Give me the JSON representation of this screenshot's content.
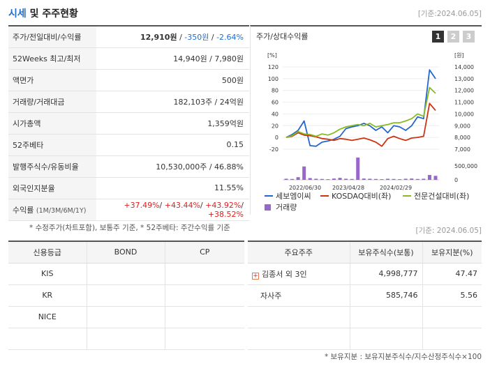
{
  "header": {
    "title_accent": "시세",
    "title_rest": " 및 주주현황",
    "basis": "[기준:2024.06.05]"
  },
  "stats": [
    {
      "key": "주가/전일대비/수익률",
      "bold": "12,910원",
      "sep": " / ",
      "change": "-350원",
      "rate": "-2.64%"
    },
    {
      "key": "52Weeks 최고/최저",
      "value": "14,940원 / 7,980원"
    },
    {
      "key": "액면가",
      "value": "500원"
    },
    {
      "key": "거래량/거래대금",
      "value": "182,103주 / 24억원"
    },
    {
      "key": "시가총액",
      "value": "1,359억원"
    },
    {
      "key": "52주베타",
      "value": "0.15"
    },
    {
      "key": "발행주식수/유동비율",
      "value": "10,530,000주 / 46.88%"
    },
    {
      "key": "외국인지분율",
      "value": "11.55%"
    },
    {
      "key": "수익률",
      "key_small": "(1M/3M/6M/1Y)",
      "r1": "+37.49%",
      "r2": "+43.44%",
      "r3": "+43.92%",
      "r4": "+38.52%"
    }
  ],
  "note1": "* 수정주가(차트포함), 보통주 기준, * 52주베타: 주간수익률 기준",
  "chart_panel": {
    "title": "주가/상대수익률",
    "tabs": [
      "1",
      "2",
      "3"
    ]
  },
  "chart_data": {
    "type": "line",
    "left_unit": "[%]",
    "right_unit": "[원]",
    "left_ticks": [
      "120",
      "100",
      "80",
      "60",
      "40",
      "20",
      "0",
      "-20"
    ],
    "right_ticks": [
      "14,000",
      "13,000",
      "12,000",
      "11,000",
      "10,000",
      "9,000",
      "8,000",
      "7,000"
    ],
    "volume_ticks": [
      "500,000",
      "0"
    ],
    "x_labels": [
      "2022/06/30",
      "2023/04/28",
      "2024/02/29"
    ],
    "ylim": [
      -20,
      120
    ],
    "series": [
      {
        "name": "세보엠이씨",
        "color": "#2266cc",
        "values": [
          0,
          5,
          12,
          28,
          -14,
          -15,
          -8,
          -6,
          -3,
          2,
          15,
          18,
          20,
          24,
          20,
          12,
          18,
          8,
          20,
          18,
          12,
          20,
          35,
          32,
          115,
          100
        ]
      },
      {
        "name": "KOSDAQ대비(좌)",
        "color": "#cc3311",
        "values": [
          0,
          2,
          8,
          4,
          3,
          1,
          -2,
          -3,
          -5,
          -2,
          -3,
          -5,
          -3,
          -1,
          -4,
          -8,
          -15,
          -2,
          2,
          -2,
          -5,
          -1,
          0,
          2,
          58,
          46
        ]
      },
      {
        "name": "전문건설대비(좌)",
        "color": "#88bb22",
        "values": [
          0,
          3,
          10,
          6,
          5,
          2,
          6,
          4,
          8,
          14,
          18,
          20,
          22,
          20,
          24,
          18,
          20,
          22,
          25,
          25,
          28,
          32,
          40,
          36,
          85,
          75
        ]
      },
      {
        "name": "거래량",
        "color": "#9966cc",
        "values": [
          5,
          4,
          12,
          60,
          8,
          5,
          4,
          3,
          6,
          9,
          5,
          4,
          100,
          6,
          5,
          4,
          3,
          5,
          4,
          3,
          5,
          6,
          4,
          5,
          22,
          18
        ]
      }
    ]
  },
  "credit": {
    "headers": [
      "신용등급",
      "BOND",
      "CP"
    ],
    "rows": [
      [
        "KIS",
        "",
        ""
      ],
      [
        "KR",
        "",
        ""
      ],
      [
        "NICE",
        "",
        ""
      ],
      [
        "",
        "",
        ""
      ]
    ]
  },
  "holders": {
    "headers": [
      "주요주주",
      "보유주식수(보통)",
      "보유지분(%)"
    ],
    "rows": [
      {
        "name": "김종서 외 3인",
        "shares": "4,998,777",
        "pct": "47.47",
        "expand": true
      },
      {
        "name": "자사주",
        "shares": "585,746",
        "pct": "5.56",
        "expand": false
      },
      {
        "name": "",
        "shares": "",
        "pct": "",
        "expand": false
      },
      {
        "name": "",
        "shares": "",
        "pct": "",
        "expand": false
      }
    ]
  },
  "basis2": "[기준: 2024.06.05]",
  "note2": "* 보유지분 : 보유지분주식수/지수산정주식수×100"
}
